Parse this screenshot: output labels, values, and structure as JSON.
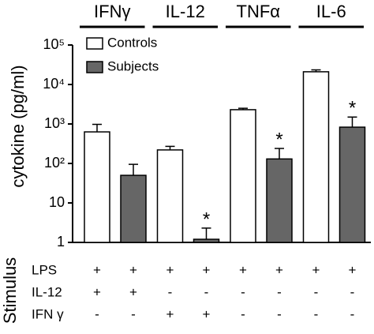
{
  "chart_data": {
    "type": "bar",
    "y_label": "cytokine (pg/ml)",
    "categories": [
      "IFNγ",
      "IL-12",
      "TNFα",
      "IL-6"
    ],
    "log_scale": true,
    "ylim": [
      1,
      100000
    ],
    "yticks": [
      1,
      10,
      {
        "value": 100,
        "label": "10²"
      },
      {
        "value": 1000,
        "label": "10³"
      },
      {
        "value": 10000,
        "label": "10⁴"
      },
      {
        "value": 100000,
        "label": "10⁵"
      }
    ],
    "legend": "upper left",
    "series": [
      {
        "name": "Controls",
        "color": "#ffffff",
        "values": [
          630,
          220,
          2300,
          21000
        ],
        "errors": [
          350,
          50,
          200,
          2500
        ],
        "markers": [
          null,
          null,
          null,
          null
        ]
      },
      {
        "name": "Subjects",
        "color": "#666666",
        "values": [
          50,
          1.2,
          130,
          830
        ],
        "errors": [
          45,
          1.1,
          110,
          670
        ],
        "markers": [
          null,
          "*",
          "*",
          "*"
        ]
      }
    ],
    "stimulus": {
      "label": "Stimulus",
      "rows": [
        {
          "name": "LPS",
          "values": [
            "+",
            "+",
            "+",
            "+",
            "+",
            "+",
            "+",
            "+"
          ]
        },
        {
          "name": "IL-12",
          "values": [
            "+",
            "+",
            "-",
            "-",
            "-",
            "-",
            "-",
            "-"
          ]
        },
        {
          "name": "IFN γ",
          "values": [
            "-",
            "-",
            "+",
            "+",
            "-",
            "-",
            "-",
            "-"
          ]
        }
      ]
    }
  }
}
